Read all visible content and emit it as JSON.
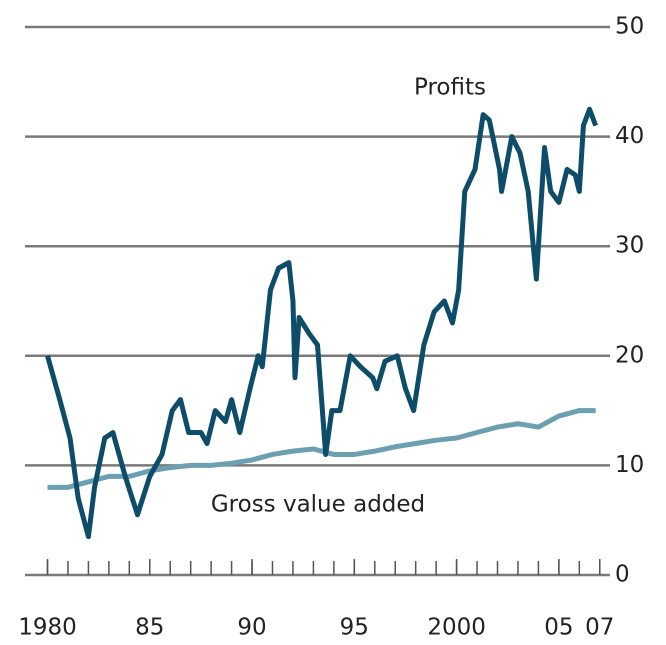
{
  "chart_data": {
    "type": "line",
    "xlim": [
      1978.9,
      2007.5
    ],
    "xticks": [
      1980,
      {
        "value": 1985,
        "label": "85"
      },
      {
        "value": 1990,
        "label": "90"
      },
      {
        "value": 1995,
        "label": "95"
      },
      2000,
      {
        "value": 2005,
        "label": "05"
      },
      {
        "value": 2007,
        "label": "07"
      }
    ],
    "ylim": [
      0,
      50
    ],
    "yticks": [
      0,
      10,
      20,
      30,
      40,
      50
    ],
    "grid": true,
    "series": [
      {
        "name": "Profits",
        "color": "#0d4d69",
        "x": [
          1980,
          1980.6,
          1981.1,
          1981.5,
          1982.0,
          1982.3,
          1982.8,
          1983.2,
          1983.8,
          1984.4,
          1985.0,
          1985.6,
          1986.1,
          1986.5,
          1986.9,
          1987.5,
          1987.8,
          1988.2,
          1988.7,
          1989.0,
          1989.4,
          1989.9,
          1990.3,
          1990.5,
          1990.9,
          1991.3,
          1991.8,
          1992.0,
          1992.1,
          1992.3,
          1992.8,
          1993.2,
          1993.6,
          1993.9,
          1994.3,
          1994.8,
          1995.3,
          1995.9,
          1996.1,
          1996.5,
          1997.1,
          1997.5,
          1997.9,
          1998.4,
          1998.9,
          1999.4,
          1999.8,
          2000.1,
          2000.4,
          2000.9,
          2001.3,
          2001.6,
          2002.1,
          2002.2,
          2002.7,
          2003.1,
          2003.5,
          2003.9,
          2004.3,
          2004.6,
          2005.0,
          2005.4,
          2005.8,
          2006.0,
          2006.2,
          2006.5,
          2006.8
        ],
        "values": [
          20,
          16,
          12.5,
          7,
          3.5,
          8,
          12.5,
          13,
          9,
          5.5,
          9,
          11,
          15,
          16,
          13,
          13,
          12,
          15,
          14,
          16,
          13,
          17,
          20,
          19,
          26,
          28,
          28.5,
          25,
          18,
          23.5,
          22,
          21,
          11,
          15,
          15,
          20,
          19,
          18,
          17,
          19.5,
          20,
          17,
          15,
          21,
          24,
          25,
          23,
          26,
          35,
          37,
          42,
          41.5,
          37,
          35,
          40,
          38.5,
          35,
          27,
          39,
          35,
          34,
          37,
          36.5,
          35,
          41,
          42.5,
          41
        ]
      },
      {
        "name": "Gross value added",
        "color": "#6b9fb1",
        "x": [
          1980,
          1981,
          1982,
          1983,
          1984,
          1985,
          1986,
          1987,
          1988,
          1989,
          1990,
          1991,
          1992,
          1993,
          1994,
          1995,
          1996,
          1997,
          1998,
          1999,
          2000,
          2001,
          2002,
          2003,
          2004,
          2005,
          2006,
          2006.8
        ],
        "values": [
          8,
          8,
          8.5,
          9,
          9,
          9.5,
          9.8,
          10,
          10,
          10.2,
          10.5,
          11,
          11.3,
          11.5,
          11,
          11,
          11.3,
          11.7,
          12,
          12.3,
          12.5,
          13,
          13.5,
          13.8,
          13.5,
          14.5,
          15,
          15
        ]
      }
    ]
  }
}
